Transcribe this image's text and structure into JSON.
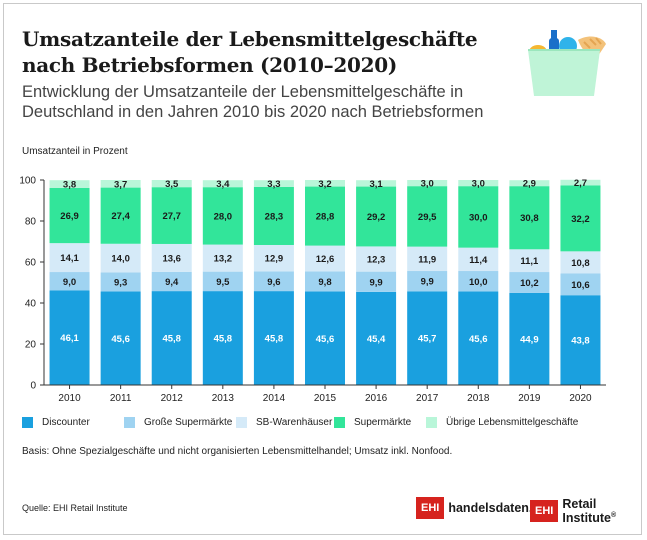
{
  "title": "Umsatzanteile der Lebensmittelgeschäfte nach Betriebsformen (2010–2020)",
  "subtitle": "Entwicklung der Umsatzanteile der Lebensmittelgeschäfte in Deutschland in den Jahren 2010 bis 2020 nach Betriebsformen",
  "note": "Basis: Ohne Spezialgeschäfte und nicht organisierten Lebensmittelhandel; Umsatz inkl. Nonfood.",
  "source": "Quelle: EHI Retail Institute",
  "logos": {
    "handelsdaten_box": "EHI",
    "handelsdaten_text": "handelsdaten.de",
    "retail_box": "EHI",
    "retail_text": "Retail Institute",
    "retail_reg": "®"
  },
  "illustration": "shopping-basket-icon",
  "chart_data": {
    "type": "bar",
    "stacked": true,
    "ylabel": "Umsatzanteil in Prozent",
    "ylim": [
      0,
      100
    ],
    "yticks": [
      0,
      20,
      40,
      60,
      80,
      100
    ],
    "grid": false,
    "legend_position": "bottom",
    "categories": [
      "2010",
      "2011",
      "2012",
      "2013",
      "2014",
      "2015",
      "2016",
      "2017",
      "2018",
      "2019",
      "2020"
    ],
    "series": [
      {
        "name": "Discounter",
        "color": "#1aa0df",
        "label_color": "#ffffff",
        "values": [
          46.1,
          45.6,
          45.8,
          45.8,
          45.8,
          45.6,
          45.4,
          45.7,
          45.6,
          44.9,
          43.8
        ]
      },
      {
        "name": "Große Supermärkte",
        "color": "#9fd3f1",
        "label_color": "#1a1a1a",
        "values": [
          9.0,
          9.3,
          9.4,
          9.5,
          9.6,
          9.8,
          9.9,
          9.9,
          10.0,
          10.2,
          10.6
        ]
      },
      {
        "name": "SB-Warenhäuser",
        "color": "#d5eaf8",
        "label_color": "#1a1a1a",
        "values": [
          14.1,
          14.0,
          13.6,
          13.2,
          12.9,
          12.6,
          12.3,
          11.9,
          11.4,
          11.1,
          10.8
        ]
      },
      {
        "name": "Supermärkte",
        "color": "#32e59a",
        "label_color": "#1a1a1a",
        "values": [
          26.9,
          27.4,
          27.7,
          28.0,
          28.3,
          28.8,
          29.2,
          29.5,
          30.0,
          30.8,
          32.2
        ]
      },
      {
        "name": "Übrige Lebensmittelgeschäfte",
        "color": "#b9f6d9",
        "label_color": "#1a1a1a",
        "values": [
          3.8,
          3.7,
          3.5,
          3.4,
          3.3,
          3.2,
          3.1,
          3.0,
          3.0,
          2.9,
          2.7
        ]
      }
    ]
  }
}
